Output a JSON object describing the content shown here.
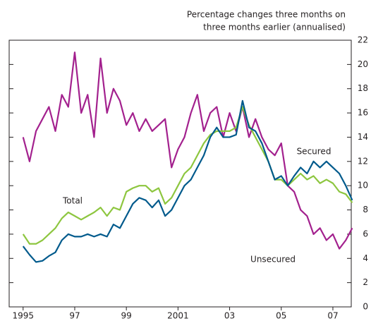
{
  "chart_data": {
    "type": "line",
    "title": [
      "Percentage changes three months on",
      "three months earlier (annualised)"
    ],
    "x": [
      1995.0,
      1995.25,
      1995.5,
      1995.75,
      1996.0,
      1996.25,
      1996.5,
      1996.75,
      1997.0,
      1997.25,
      1997.5,
      1997.75,
      1998.0,
      1998.25,
      1998.5,
      1998.75,
      1999.0,
      1999.25,
      1999.5,
      1999.75,
      2000.0,
      2000.25,
      2000.5,
      2000.75,
      2001.0,
      2001.25,
      2001.5,
      2001.75,
      2002.0,
      2002.25,
      2002.5,
      2002.75,
      2003.0,
      2003.25,
      2003.5,
      2003.75,
      2004.0,
      2004.25,
      2004.5,
      2004.75,
      2005.0,
      2005.25,
      2005.5,
      2005.75,
      2006.0,
      2006.25,
      2006.5,
      2006.75,
      2007.0,
      2007.25,
      2007.5,
      2007.75
    ],
    "series": [
      {
        "name": "Unsecured",
        "color": "#a3218e",
        "values": [
          14,
          12,
          14.5,
          15.5,
          16.5,
          14.5,
          17.5,
          16.5,
          21,
          16,
          17.5,
          14,
          20.5,
          16,
          18,
          17,
          15,
          16,
          14.5,
          15.5,
          14.5,
          15,
          15.5,
          11.5,
          13,
          14,
          16,
          17.5,
          14.5,
          16,
          16.5,
          14,
          16,
          14.5,
          16.5,
          14,
          15.5,
          14,
          13,
          12.5,
          13.5,
          10,
          9.5,
          8,
          7.5,
          6,
          6.5,
          5.5,
          6,
          4.8,
          5.5,
          6.5
        ]
      },
      {
        "name": "Total",
        "color": "#8dc63f",
        "values": [
          6,
          5.2,
          5.2,
          5.5,
          6,
          6.5,
          7.3,
          7.8,
          7.5,
          7.2,
          7.5,
          7.8,
          8.2,
          7.5,
          8.2,
          8,
          9.5,
          9.8,
          10,
          10,
          9.5,
          9.8,
          8.5,
          9,
          10,
          11,
          11.5,
          12.5,
          13.5,
          14.2,
          14.5,
          14.5,
          14.5,
          14.8,
          16.5,
          15,
          14,
          13,
          12,
          10.5,
          10.5,
          10,
          10.5,
          11,
          10.5,
          10.8,
          10.2,
          10.5,
          10.2,
          9.5,
          9.3,
          8.6
        ]
      },
      {
        "name": "Secured",
        "color": "#005a8c",
        "values": [
          5,
          4.3,
          3.7,
          3.8,
          4.2,
          4.5,
          5.5,
          6,
          5.8,
          5.8,
          6,
          5.8,
          6,
          5.8,
          6.8,
          6.5,
          7.5,
          8.5,
          9,
          8.8,
          8.2,
          8.8,
          7.5,
          8,
          9,
          10,
          10.5,
          11.5,
          12.5,
          14,
          14.8,
          14,
          14,
          14.2,
          17,
          14.8,
          14.5,
          13.5,
          12,
          10.5,
          10.8,
          10,
          10.8,
          11.5,
          11,
          12,
          11.5,
          12,
          11.5,
          11,
          10,
          8.8
        ]
      }
    ],
    "xlim": [
      1994.46,
      2007.93
    ],
    "xticks": [
      {
        "value": 1995,
        "label": "1995"
      },
      {
        "value": 1997,
        "label": "97"
      },
      {
        "value": 1999,
        "label": "99"
      },
      {
        "value": 2001,
        "label": "2001"
      },
      {
        "value": 2003,
        "label": "03"
      },
      {
        "value": 2005,
        "label": "05"
      },
      {
        "value": 2007,
        "label": "07"
      }
    ],
    "ylim": [
      0,
      22
    ],
    "yticks": [
      0,
      2,
      4,
      6,
      8,
      10,
      12,
      14,
      16,
      18,
      20,
      22
    ]
  }
}
